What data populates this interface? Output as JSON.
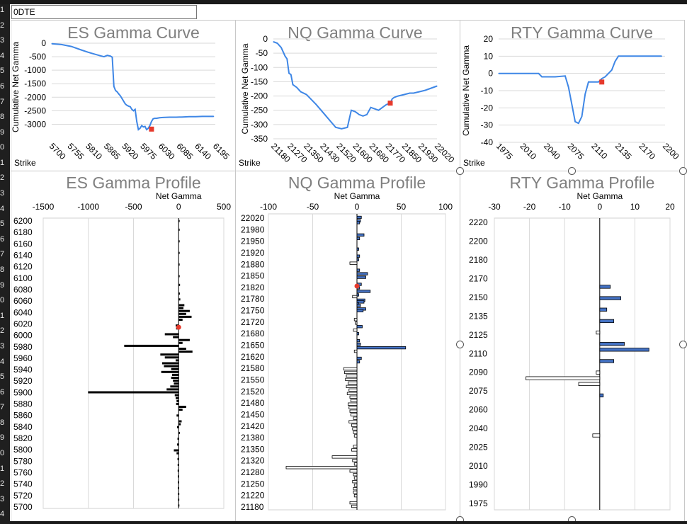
{
  "sheet": {
    "cell_a1": "0DTE"
  },
  "row_numbers": [
    "1",
    "2",
    "3",
    "4",
    "5",
    "6",
    "7",
    "8",
    "9",
    "0",
    "1",
    "2",
    "3",
    "4",
    "5",
    "6",
    "7",
    "8",
    "9",
    "0",
    "1",
    "2",
    "3",
    "4",
    "5",
    "6",
    "7",
    "8",
    "9",
    "0",
    "1",
    "2",
    "3",
    "4"
  ],
  "colors": {
    "line": "#3f87e6",
    "marker": "#e63a2c",
    "bar_blue": "#4472c4",
    "bar_white": "#ffffff",
    "bar_black": "#000000",
    "title_gray": "#7f7f7f"
  },
  "chart_data": [
    {
      "type": "line",
      "title": "ES Gamma Curve",
      "ylabel": "Cumulative Net Gamma",
      "xlabel_corner": "Strike",
      "x_ticks": [
        "5700",
        "5755",
        "5810",
        "5865",
        "5920",
        "5975",
        "6030",
        "6085",
        "6140",
        "6195"
      ],
      "y_ticks": [
        "0",
        "-500",
        "-1000",
        "-1500",
        "-2000",
        "-2500",
        "-3000"
      ],
      "xlim": [
        5700,
        6200
      ],
      "ylim": [
        -3250,
        0
      ],
      "series": [
        {
          "x": [
            5700,
            5730,
            5760,
            5790,
            5810,
            5830,
            5850,
            5860,
            5870,
            5880,
            5885,
            5890,
            5895,
            5900,
            5905,
            5910,
            5915,
            5920,
            5925,
            5930,
            5935,
            5940,
            5945,
            5950,
            5955,
            5960,
            5965,
            5970,
            5975,
            5980,
            5985,
            5990,
            5995,
            6000,
            6005,
            6010,
            6015,
            6020,
            6030,
            6040,
            6060,
            6080,
            6100,
            6120,
            6140,
            6160,
            6180,
            6195
          ],
          "y": [
            -20,
            -50,
            -120,
            -250,
            -330,
            -400,
            -470,
            -500,
            -450,
            -480,
            -520,
            -1600,
            -1750,
            -1800,
            -1880,
            -1950,
            -2050,
            -2150,
            -2250,
            -2300,
            -2330,
            -2350,
            -2450,
            -2500,
            -2450,
            -2900,
            -3200,
            -3150,
            -3050,
            -3100,
            -3080,
            -3200,
            -3150,
            -3050,
            -2900,
            -2800,
            -2780,
            -2780,
            -2760,
            -2750,
            -2740,
            -2740,
            -2730,
            -2720,
            -2720,
            -2710,
            -2710,
            -2710
          ]
        }
      ],
      "marker": {
        "x": 6005,
        "y": -3180
      }
    },
    {
      "type": "line",
      "title": "NQ Gamma Curve",
      "ylabel": "Cumulative Net Gamma",
      "xlabel_corner": "Strike",
      "x_ticks": [
        "21180",
        "21270",
        "21350",
        "21430",
        "21520",
        "21600",
        "21680",
        "21770",
        "21850",
        "21930",
        "22020"
      ],
      "y_ticks": [
        "0",
        "-50",
        "-100",
        "-150",
        "-200",
        "-250",
        "-300",
        "-350"
      ],
      "xlim": [
        21180,
        22020
      ],
      "ylim": [
        -350,
        0
      ],
      "series": [
        {
          "x": [
            21180,
            21200,
            21220,
            21240,
            21250,
            21260,
            21270,
            21280,
            21300,
            21320,
            21350,
            21400,
            21450,
            21500,
            21530,
            21560,
            21580,
            21600,
            21610,
            21620,
            21640,
            21660,
            21680,
            21700,
            21720,
            21740,
            21760,
            21780,
            21790,
            21800,
            21820,
            21850,
            21880,
            21900,
            21930,
            21960,
            21980,
            22000,
            22020
          ],
          "y": [
            -10,
            -15,
            -30,
            -60,
            -70,
            -120,
            -125,
            -160,
            -170,
            -185,
            -195,
            -230,
            -270,
            -310,
            -315,
            -310,
            -250,
            -255,
            -260,
            -265,
            -270,
            -265,
            -240,
            -245,
            -250,
            -240,
            -230,
            -225,
            -210,
            -205,
            -200,
            -195,
            -190,
            -190,
            -185,
            -180,
            -175,
            -170,
            -165
          ]
        }
      ],
      "marker": {
        "x": 21780,
        "y": -225
      }
    },
    {
      "type": "line",
      "title": "RTY Gamma Curve",
      "ylabel": "Cumulative Net Gamma",
      "xlabel_corner": "Strike",
      "x_ticks": [
        "1975",
        "2010",
        "2040",
        "2075",
        "2110",
        "2135",
        "2170",
        "2200"
      ],
      "y_ticks": [
        "20",
        "10",
        "0",
        "-10",
        "-20",
        "-30",
        "-40"
      ],
      "xlim": [
        1975,
        2225
      ],
      "ylim": [
        -40,
        20
      ],
      "series": [
        {
          "x": [
            1975,
            2000,
            2020,
            2035,
            2040,
            2060,
            2075,
            2080,
            2090,
            2095,
            2100,
            2105,
            2110,
            2115,
            2120,
            2125,
            2130,
            2135,
            2140,
            2145,
            2150,
            2155,
            2160,
            2170,
            2180,
            2200,
            2220
          ],
          "y": [
            0,
            0,
            0,
            0,
            -2,
            -2,
            -1.5,
            -8,
            -28,
            -29,
            -25,
            -12,
            -5,
            -5,
            -5,
            -5,
            -3,
            -2,
            0,
            2,
            7,
            10,
            10,
            10,
            10,
            10,
            10
          ]
        }
      ],
      "marker": {
        "x": 2130,
        "y": -5
      }
    },
    {
      "type": "bar",
      "orientation": "horizontal",
      "title": "ES Gamma Profile",
      "xlabel": "Net Gamma",
      "x_ticks": [
        "-1500",
        "-1000",
        "-500",
        "0",
        "500"
      ],
      "xlim": [
        -1500,
        500
      ],
      "y_ticks": [
        "6200",
        "6180",
        "6160",
        "6140",
        "6120",
        "6100",
        "6080",
        "6060",
        "6040",
        "6020",
        "6000",
        "5980",
        "5960",
        "5940",
        "5920",
        "5900",
        "5880",
        "5860",
        "5840",
        "5820",
        "5800",
        "5780",
        "5760",
        "5740",
        "5720",
        "5700"
      ],
      "ylim": [
        5700,
        6200
      ],
      "bars": [
        {
          "strike": 6195,
          "value": 5
        },
        {
          "strike": 6180,
          "value": 5
        },
        {
          "strike": 6160,
          "value": 5
        },
        {
          "strike": 6140,
          "value": 5
        },
        {
          "strike": 6120,
          "value": 3
        },
        {
          "strike": 6100,
          "value": 8
        },
        {
          "strike": 6085,
          "value": 12
        },
        {
          "strike": 6070,
          "value": 10
        },
        {
          "strike": 6060,
          "value": 15
        },
        {
          "strike": 6050,
          "value": 60
        },
        {
          "strike": 6045,
          "value": 50
        },
        {
          "strike": 6040,
          "value": 120
        },
        {
          "strike": 6035,
          "value": 80
        },
        {
          "strike": 6030,
          "value": 140
        },
        {
          "strike": 6025,
          "value": 40
        },
        {
          "strike": 6015,
          "value": -30
        },
        {
          "strike": 6010,
          "value": -25
        },
        {
          "strike": 6000,
          "value": -150
        },
        {
          "strike": 5995,
          "value": -60
        },
        {
          "strike": 5990,
          "value": 120
        },
        {
          "strike": 5985,
          "value": 40
        },
        {
          "strike": 5980,
          "value": -600
        },
        {
          "strike": 5975,
          "value": 80
        },
        {
          "strike": 5970,
          "value": 150
        },
        {
          "strike": 5965,
          "value": -200
        },
        {
          "strike": 5960,
          "value": -150
        },
        {
          "strike": 5955,
          "value": -30
        },
        {
          "strike": 5950,
          "value": -180
        },
        {
          "strike": 5945,
          "value": -160
        },
        {
          "strike": 5940,
          "value": -80
        },
        {
          "strike": 5935,
          "value": -190
        },
        {
          "strike": 5930,
          "value": -70
        },
        {
          "strike": 5925,
          "value": -80
        },
        {
          "strike": 5920,
          "value": -60
        },
        {
          "strike": 5915,
          "value": -50
        },
        {
          "strike": 5910,
          "value": -90
        },
        {
          "strike": 5905,
          "value": -130
        },
        {
          "strike": 5900,
          "value": -1000
        },
        {
          "strike": 5895,
          "value": -40
        },
        {
          "strike": 5890,
          "value": -30
        },
        {
          "strike": 5885,
          "value": -20
        },
        {
          "strike": 5880,
          "value": -25
        },
        {
          "strike": 5875,
          "value": 80
        },
        {
          "strike": 5870,
          "value": 40
        },
        {
          "strike": 5860,
          "value": -20
        },
        {
          "strike": 5850,
          "value": 30
        },
        {
          "strike": 5845,
          "value": 20
        },
        {
          "strike": 5840,
          "value": -15
        },
        {
          "strike": 5830,
          "value": 10
        },
        {
          "strike": 5820,
          "value": -10
        },
        {
          "strike": 5810,
          "value": -15
        },
        {
          "strike": 5800,
          "value": -50
        },
        {
          "strike": 5795,
          "value": -20
        },
        {
          "strike": 5785,
          "value": -10
        },
        {
          "strike": 5775,
          "value": -8
        },
        {
          "strike": 5765,
          "value": -8
        },
        {
          "strike": 5755,
          "value": -6
        },
        {
          "strike": 5745,
          "value": -5
        },
        {
          "strike": 5735,
          "value": -5
        },
        {
          "strike": 5725,
          "value": -4
        },
        {
          "strike": 5715,
          "value": -4
        },
        {
          "strike": 5705,
          "value": -3
        }
      ],
      "marker": {
        "strike": 6012,
        "value": 0
      }
    },
    {
      "type": "bar",
      "orientation": "horizontal",
      "title": "NQ Gamma Profile",
      "xlabel": "Net Gamma",
      "x_ticks": [
        "-100",
        "-50",
        "0",
        "50",
        "100"
      ],
      "xlim": [
        -100,
        100
      ],
      "y_ticks": [
        "22020",
        "21980",
        "21950",
        "21920",
        "21880",
        "21850",
        "21820",
        "21780",
        "21750",
        "21720",
        "21680",
        "21650",
        "21620",
        "21580",
        "21550",
        "21520",
        "21480",
        "21450",
        "21420",
        "21380",
        "21350",
        "21320",
        "21280",
        "21250",
        "21220",
        "21180"
      ],
      "ylim": [
        21180,
        22020
      ],
      "bars": [
        {
          "strike": 22010,
          "value": 5
        },
        {
          "strike": 22000,
          "value": 4
        },
        {
          "strike": 21995,
          "value": 3
        },
        {
          "strike": 21960,
          "value": 8
        },
        {
          "strike": 21950,
          "value": 3
        },
        {
          "strike": 21920,
          "value": 2
        },
        {
          "strike": 21900,
          "value": 3
        },
        {
          "strike": 21890,
          "value": 2
        },
        {
          "strike": 21880,
          "value": -8
        },
        {
          "strike": 21860,
          "value": 3
        },
        {
          "strike": 21850,
          "value": 12
        },
        {
          "strike": 21840,
          "value": 10
        },
        {
          "strike": 21820,
          "value": 5
        },
        {
          "strike": 21810,
          "value": 3
        },
        {
          "strike": 21800,
          "value": 15
        },
        {
          "strike": 21790,
          "value": 2
        },
        {
          "strike": 21785,
          "value": -5
        },
        {
          "strike": 21775,
          "value": 9
        },
        {
          "strike": 21770,
          "value": 8
        },
        {
          "strike": 21765,
          "value": 2
        },
        {
          "strike": 21760,
          "value": 4
        },
        {
          "strike": 21750,
          "value": 10
        },
        {
          "strike": 21745,
          "value": 7
        },
        {
          "strike": 21720,
          "value": -3
        },
        {
          "strike": 21710,
          "value": -2
        },
        {
          "strike": 21700,
          "value": 6
        },
        {
          "strike": 21690,
          "value": -4
        },
        {
          "strike": 21680,
          "value": 2
        },
        {
          "strike": 21660,
          "value": 3
        },
        {
          "strike": 21650,
          "value": 4
        },
        {
          "strike": 21640,
          "value": 55
        },
        {
          "strike": 21630,
          "value": -3
        },
        {
          "strike": 21610,
          "value": 5
        },
        {
          "strike": 21600,
          "value": 3
        },
        {
          "strike": 21580,
          "value": -15
        },
        {
          "strike": 21570,
          "value": -14
        },
        {
          "strike": 21560,
          "value": -12
        },
        {
          "strike": 21550,
          "value": -13
        },
        {
          "strike": 21540,
          "value": -10
        },
        {
          "strike": 21530,
          "value": -12
        },
        {
          "strike": 21520,
          "value": -9
        },
        {
          "strike": 21510,
          "value": -11
        },
        {
          "strike": 21500,
          "value": -8
        },
        {
          "strike": 21490,
          "value": -7
        },
        {
          "strike": 21480,
          "value": -10
        },
        {
          "strike": 21470,
          "value": -9
        },
        {
          "strike": 21460,
          "value": -8
        },
        {
          "strike": 21450,
          "value": -7
        },
        {
          "strike": 21440,
          "value": -4
        },
        {
          "strike": 21430,
          "value": -9
        },
        {
          "strike": 21420,
          "value": -6
        },
        {
          "strike": 21410,
          "value": -5
        },
        {
          "strike": 21400,
          "value": -4
        },
        {
          "strike": 21390,
          "value": -3
        },
        {
          "strike": 21360,
          "value": -4
        },
        {
          "strike": 21350,
          "value": -6
        },
        {
          "strike": 21330,
          "value": -28
        },
        {
          "strike": 21320,
          "value": -5
        },
        {
          "strike": 21310,
          "value": -3
        },
        {
          "strike": 21300,
          "value": -80
        },
        {
          "strike": 21290,
          "value": -8
        },
        {
          "strike": 21280,
          "value": -4
        },
        {
          "strike": 21270,
          "value": -3
        },
        {
          "strike": 21260,
          "value": -5
        },
        {
          "strike": 21250,
          "value": -3
        },
        {
          "strike": 21240,
          "value": -4
        },
        {
          "strike": 21230,
          "value": -4
        },
        {
          "strike": 21220,
          "value": -3
        },
        {
          "strike": 21200,
          "value": -8
        },
        {
          "strike": 21190,
          "value": -6
        }
      ],
      "marker": {
        "strike": 21815,
        "value": 0
      }
    },
    {
      "type": "bar",
      "orientation": "horizontal",
      "title": "RTY Gamma Profile",
      "xlabel": "Net Gamma",
      "x_ticks": [
        "-30",
        "-20",
        "-10",
        "0",
        "10",
        "20"
      ],
      "xlim": [
        -30,
        20
      ],
      "y_ticks": [
        "2220",
        "2200",
        "2180",
        "2170",
        "2150",
        "2135",
        "2125",
        "2110",
        "2090",
        "2075",
        "2060",
        "2040",
        "2025",
        "2010",
        "1990",
        "1975"
      ],
      "ylim": [
        1970,
        2225
      ],
      "bars": [
        {
          "strike": 2165,
          "value": 3
        },
        {
          "strike": 2155,
          "value": 6
        },
        {
          "strike": 2145,
          "value": 2
        },
        {
          "strike": 2135,
          "value": 4
        },
        {
          "strike": 2125,
          "value": -1
        },
        {
          "strike": 2115,
          "value": 7
        },
        {
          "strike": 2110,
          "value": 14
        },
        {
          "strike": 2100,
          "value": 4
        },
        {
          "strike": 2090,
          "value": -1
        },
        {
          "strike": 2085,
          "value": -21
        },
        {
          "strike": 2080,
          "value": -6
        },
        {
          "strike": 2070,
          "value": 1
        },
        {
          "strike": 2035,
          "value": -2
        }
      ]
    }
  ]
}
